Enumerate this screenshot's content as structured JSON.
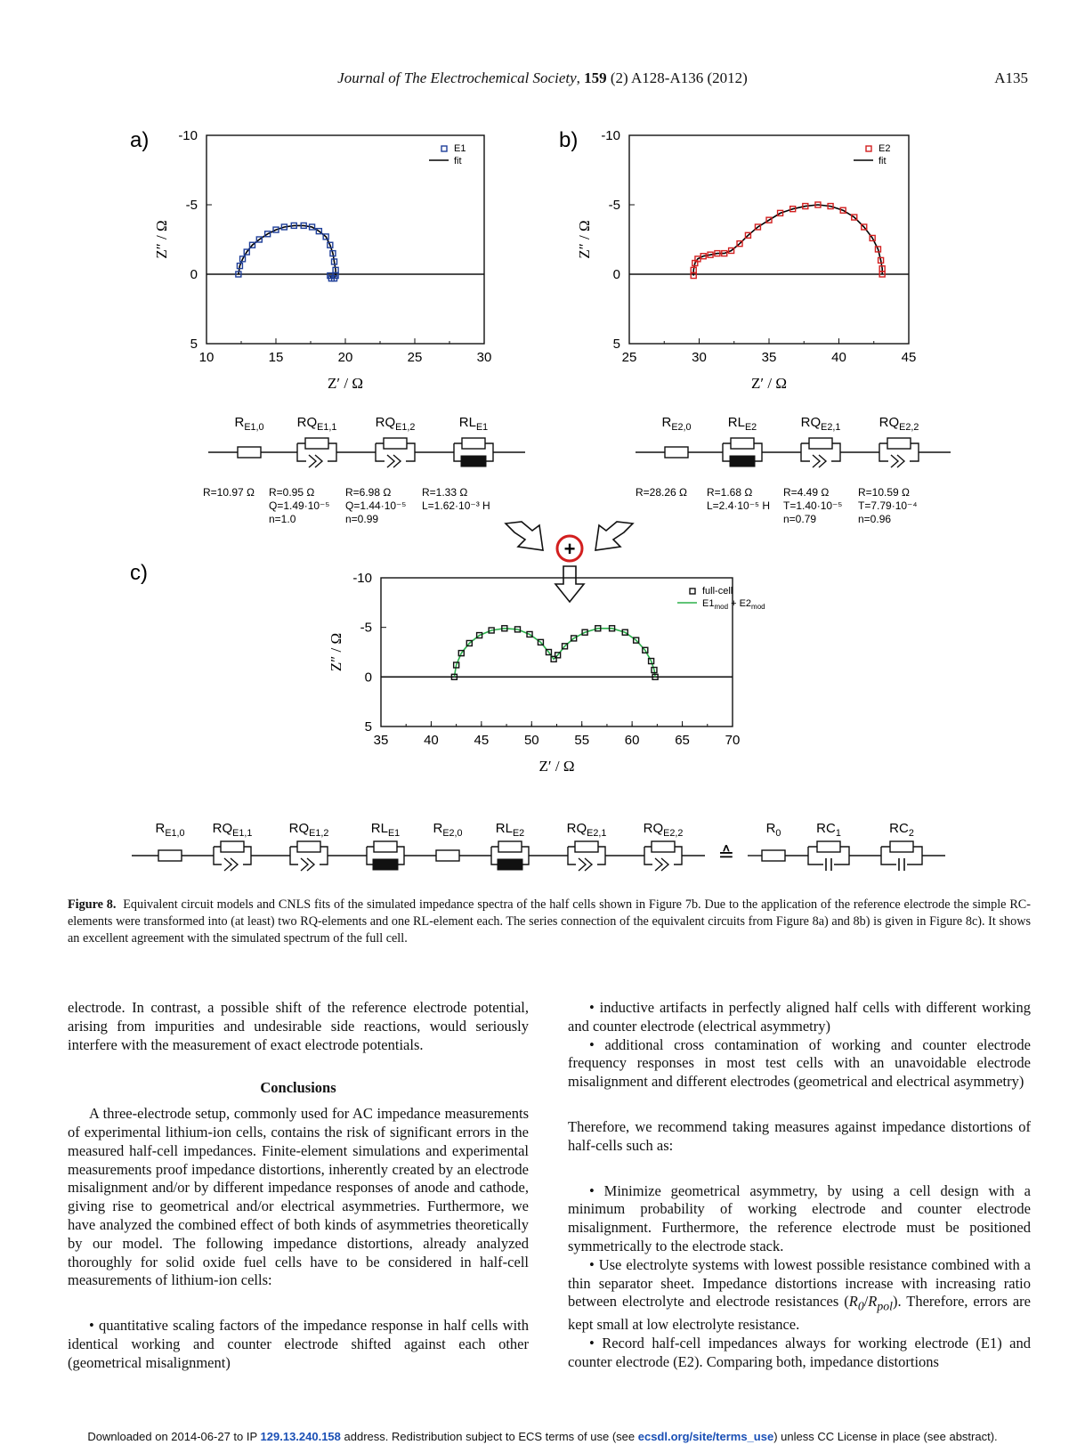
{
  "header": {
    "journal": "Journal of The Electrochemical Society",
    "volume": "159",
    "issue_pages": "(2) A128-A136 (2012)",
    "page": "A135"
  },
  "figure": {
    "panel_labels": [
      "a)",
      "b)",
      "c)"
    ],
    "y_axis_label": "Z″ / Ω",
    "x_axis_label": "Z′ / Ω",
    "circuit_a": {
      "elements": [
        {
          "name": "R",
          "sub": "E1,0"
        },
        {
          "name": "RQ",
          "sub": "E1,1"
        },
        {
          "name": "RQ",
          "sub": "E1,2"
        },
        {
          "name": "RL",
          "sub": "E1"
        }
      ],
      "params": [
        [
          "R=10.97 Ω"
        ],
        [
          "R=0.95 Ω",
          "Q=1.49·10⁻⁵",
          "n=1.0"
        ],
        [
          "R=6.98 Ω",
          "Q=1.44·10⁻⁵",
          "n=0.99"
        ],
        [
          "R=1.33 Ω",
          "L=1.62·10⁻³ H"
        ]
      ]
    },
    "circuit_b": {
      "elements": [
        {
          "name": "R",
          "sub": "E2,0"
        },
        {
          "name": "RL",
          "sub": "E2"
        },
        {
          "name": "RQ",
          "sub": "E2,1"
        },
        {
          "name": "RQ",
          "sub": "E2,2"
        }
      ],
      "params": [
        [
          "R=28.26 Ω"
        ],
        [
          "R=1.68 Ω",
          "L=2.4·10⁻⁵ H"
        ],
        [
          "R=4.49 Ω",
          "T=1.40·10⁻⁵",
          "n=0.79"
        ],
        [
          "R=10.59 Ω",
          "T=7.79·10⁻⁴",
          "n=0.96"
        ]
      ]
    },
    "circuit_c": {
      "elements": [
        {
          "name": "R",
          "sub": "E1,0"
        },
        {
          "name": "RQ",
          "sub": "E1,1"
        },
        {
          "name": "RQ",
          "sub": "E1,2"
        },
        {
          "name": "RL",
          "sub": "E1"
        },
        {
          "name": "R",
          "sub": "E2,0"
        },
        {
          "name": "RL",
          "sub": "E2"
        },
        {
          "name": "RQ",
          "sub": "E2,1"
        },
        {
          "name": "RQ",
          "sub": "E2,2"
        }
      ],
      "equiv_symbol": "≙",
      "equivalent": [
        {
          "name": "R",
          "sub": "0"
        },
        {
          "name": "RC",
          "sub": "1"
        },
        {
          "name": "RC",
          "sub": "2"
        }
      ]
    },
    "plus_symbol": "+"
  },
  "chart_data": [
    {
      "type": "scatter",
      "panel": "a)",
      "xlabel": "Z′ / Ω",
      "ylabel": "Z″ / Ω",
      "xlim": [
        10,
        30
      ],
      "ylim": [
        -10,
        5
      ],
      "y_inverted": true,
      "xticks": [
        10,
        15,
        20,
        25,
        30
      ],
      "yticks": [
        -10,
        -5,
        0,
        5
      ],
      "legend_position": "top-right",
      "series": [
        {
          "name": "E1",
          "marker": "open-square",
          "color": "#1f3f99",
          "x": [
            12.3,
            12.4,
            12.6,
            12.9,
            13.3,
            13.8,
            14.4,
            15.0,
            15.6,
            16.3,
            17.0,
            17.6,
            18.1,
            18.6,
            18.9,
            19.1,
            19.2,
            19.3,
            19.3,
            19.2,
            19.0,
            18.9
          ],
          "y": [
            0.0,
            -0.6,
            -1.1,
            -1.6,
            -2.1,
            -2.5,
            -2.9,
            -3.2,
            -3.4,
            -3.5,
            -3.5,
            -3.4,
            -3.1,
            -2.7,
            -2.1,
            -1.5,
            -0.9,
            -0.3,
            0.1,
            0.3,
            0.3,
            0.1
          ]
        },
        {
          "name": "fit",
          "line": "solid",
          "color": "#000000"
        }
      ]
    },
    {
      "type": "scatter",
      "panel": "b)",
      "xlabel": "Z′ / Ω",
      "ylabel": "Z″ / Ω",
      "xlim": [
        25,
        45
      ],
      "ylim": [
        -10,
        5
      ],
      "y_inverted": true,
      "xticks": [
        25,
        30,
        35,
        40,
        45
      ],
      "yticks": [
        -10,
        -5,
        0,
        5
      ],
      "legend_position": "top-right",
      "series": [
        {
          "name": "E2",
          "marker": "open-square",
          "color": "#d21f1f",
          "x": [
            29.6,
            29.6,
            29.7,
            29.9,
            30.3,
            30.8,
            31.3,
            31.8,
            32.3,
            32.9,
            33.5,
            34.2,
            35.0,
            35.8,
            36.7,
            37.6,
            38.5,
            39.4,
            40.3,
            41.1,
            41.8,
            42.4,
            42.8,
            43.0,
            43.1,
            43.1
          ],
          "y": [
            0.1,
            -0.3,
            -0.8,
            -1.1,
            -1.3,
            -1.4,
            -1.5,
            -1.5,
            -1.7,
            -2.2,
            -2.8,
            -3.4,
            -3.9,
            -4.4,
            -4.7,
            -4.9,
            -5.0,
            -4.9,
            -4.6,
            -4.1,
            -3.4,
            -2.6,
            -1.8,
            -1.0,
            -0.4,
            0.0
          ]
        },
        {
          "name": "fit",
          "line": "solid",
          "color": "#000000"
        }
      ]
    },
    {
      "type": "scatter",
      "panel": "c)",
      "xlabel": "Z′ / Ω",
      "ylabel": "Z″ / Ω",
      "xlim": [
        35,
        70
      ],
      "ylim": [
        -10,
        5
      ],
      "y_inverted": true,
      "xticks": [
        35,
        40,
        45,
        50,
        55,
        60,
        65,
        70
      ],
      "yticks": [
        -10,
        -5,
        0,
        5
      ],
      "legend_position": "top-right",
      "series": [
        {
          "name": "full-cell",
          "marker": "open-square",
          "color": "#111111",
          "x": [
            42.3,
            42.5,
            43.0,
            43.8,
            44.8,
            46.0,
            47.3,
            48.6,
            49.8,
            50.9,
            51.7,
            52.2,
            52.6,
            53.3,
            54.2,
            55.3,
            56.6,
            58.0,
            59.3,
            60.4,
            61.3,
            61.9,
            62.2,
            62.3
          ],
          "y": [
            0.0,
            -1.2,
            -2.4,
            -3.4,
            -4.2,
            -4.7,
            -4.9,
            -4.8,
            -4.3,
            -3.5,
            -2.5,
            -1.8,
            -2.2,
            -3.1,
            -3.9,
            -4.5,
            -4.9,
            -4.9,
            -4.5,
            -3.7,
            -2.7,
            -1.6,
            -0.7,
            0.0
          ]
        },
        {
          "name": "E1mod + E2mod",
          "line": "solid",
          "color": "#2bb04a"
        }
      ]
    }
  ],
  "caption": {
    "label": "Figure 8.",
    "text": "Equivalent circuit models and CNLS fits of the simulated impedance spectra of the half cells shown in Figure 7b. Due to the application of the reference electrode the simple RC-elements were transformed into (at least) two RQ-elements and one RL-element each. The series connection of the equivalent circuits from Figure 8a) and 8b) is given in Figure 8c). It shows an excellent agreement with the simulated spectrum of the full cell."
  },
  "left_column": {
    "p1": "electrode. In contrast, a possible shift of the reference electrode potential, arising from impurities and undesirable side reactions, would seriously interfere with the measurement of exact electrode potentials.",
    "heading": "Conclusions",
    "p2": "A three-electrode setup, commonly used for AC impedance measurements of experimental lithium-ion cells, contains the risk of significant errors in the measured half-cell impedances. Finite-element simulations and experimental measurements proof impedance distortions, inherently created by an electrode misalignment and/or by different impedance responses of anode and cathode, giving rise to geometrical and/or electrical asymmetries. Furthermore, we have analyzed the combined effect of both kinds of asymmetries theoretically by our model. The following impedance distortions, already analyzed thoroughly for solid oxide fuel cells have to be considered in half-cell measurements of lithium-ion cells:",
    "bullet1": "• quantitative scaling factors of the impedance response in half cells with identical working and counter electrode shifted against each other (geometrical misalignment)"
  },
  "right_column": {
    "bullet2": "• inductive artifacts in perfectly aligned half cells with different working and counter electrode (electrical asymmetry)",
    "bullet3": "• additional cross contamination of working and counter electrode frequency responses in most test cells with an unavoidable electrode misalignment and different electrodes (geometrical and electrical asymmetry)",
    "p3": "Therefore, we recommend taking measures against impedance distortions of half-cells such as:",
    "rec1": "• Minimize geometrical asymmetry, by using a cell design with a minimum probability of working electrode and counter electrode misalignment. Furthermore, the reference electrode must be positioned symmetrically to the electrode stack.",
    "rec2a": "• Use electrolyte systems with lowest possible resistance combined with a thin separator sheet. Impedance distortions increase with increasing ratio between electrolyte and electrode resistances (",
    "rec2_r0": "R",
    "rec2_r0sub": "0",
    "rec2_slash": "/",
    "rec2_rpol": "R",
    "rec2_rpolsub": "pol",
    "rec2b": "). Therefore, errors are kept small at low electrolyte resistance.",
    "rec3": "• Record half-cell impedances always for working electrode (E1) and counter electrode (E2). Comparing both, impedance distortions"
  },
  "footer": {
    "t1": "Downloaded on 2014-06-27 to IP ",
    "ip": "129.13.240.158",
    "t2": " address. Redistribution subject to ECS terms of use (see ",
    "link": "ecsdl.org/site/terms_use",
    "t3": ") unless CC License in place (see abstract)."
  }
}
